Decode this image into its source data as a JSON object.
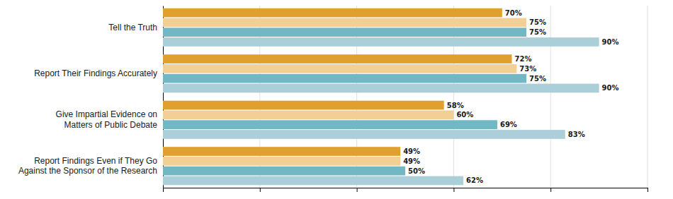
{
  "chart_data": {
    "type": "bar",
    "orientation": "horizontal",
    "categories": [
      "Tell the Truth",
      "Report Their Findings Accurately",
      "Give Impartial Evidence on\nMatters of Public Debate",
      "Report Findings Even if They Go\nAgainst the Sponsor of the Research"
    ],
    "series": [
      {
        "color": "#E0A030",
        "values": [
          70,
          72,
          58,
          49
        ],
        "value_labels": [
          "70%",
          "72%",
          "58%",
          "49%"
        ]
      },
      {
        "color": "#F2D095",
        "values": [
          75,
          73,
          60,
          49
        ],
        "value_labels": [
          "75%",
          "73%",
          "60%",
          "49%"
        ]
      },
      {
        "color": "#72B8C4",
        "values": [
          75,
          75,
          69,
          50
        ],
        "value_labels": [
          "75%",
          "75%",
          "69%",
          "50%"
        ]
      },
      {
        "color": "#AACFD8",
        "values": [
          90,
          90,
          83,
          62
        ],
        "value_labels": [
          "90%",
          "90%",
          "83%",
          "62%"
        ]
      }
    ],
    "xlim": [
      0,
      100
    ],
    "xticks": [
      20,
      40,
      60,
      80,
      100
    ],
    "grid": true,
    "data_labels": true,
    "tick_labels": "y"
  }
}
